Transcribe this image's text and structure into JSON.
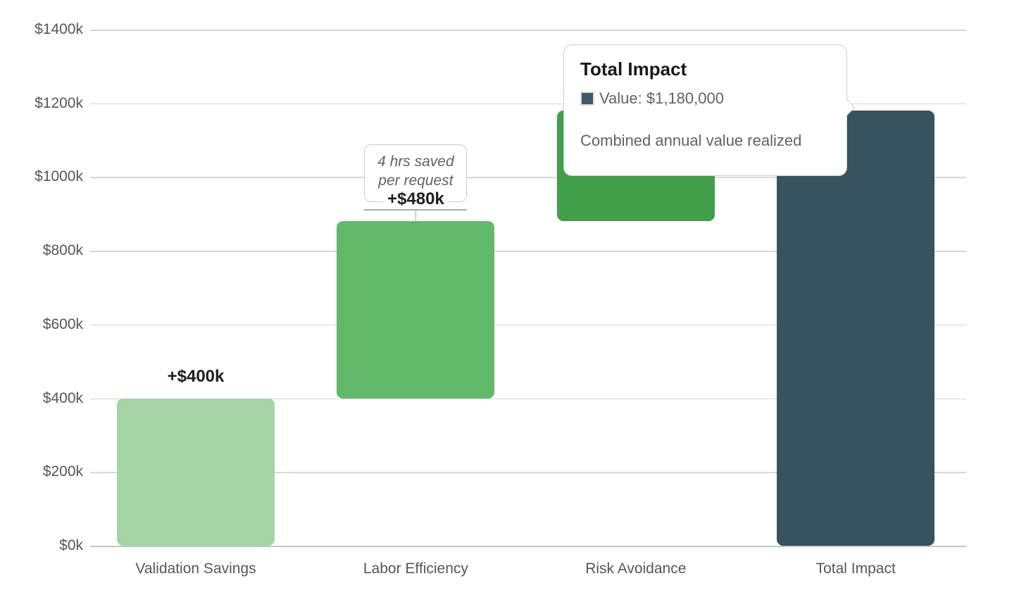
{
  "chart_data": {
    "type": "waterfall",
    "title": "",
    "categories": [
      "Validation Savings",
      "Labor Efficiency",
      "Risk Avoidance",
      "Total Impact"
    ],
    "bars": [
      {
        "category": "Validation Savings",
        "start": 0,
        "end": 400,
        "value": 400,
        "value_label": "+$400k",
        "color": "#a4d4a5",
        "role": "increase"
      },
      {
        "category": "Labor Efficiency",
        "start": 400,
        "end": 880,
        "value": 480,
        "value_label": "+$480k",
        "color": "#61b96a",
        "role": "increase"
      },
      {
        "category": "Risk Avoidance",
        "start": 880,
        "end": 1180,
        "value": 300,
        "value_label": null,
        "color": "#40a049",
        "role": "increase"
      },
      {
        "category": "Total Impact",
        "start": 0,
        "end": 1180,
        "value": 1180,
        "value_label": null,
        "color": "#36535f",
        "role": "total"
      }
    ],
    "annotations": [
      {
        "target": "Labor Efficiency",
        "lines": [
          "4 hrs saved",
          "per request"
        ]
      }
    ],
    "y_axis": {
      "min": 0,
      "max": 1400,
      "step": 200,
      "tick_labels": [
        "$0k",
        "$200k",
        "$400k",
        "$600k",
        "$800k",
        "$1000k",
        "$1200k",
        "$1400k"
      ],
      "unit": "USD thousands"
    },
    "grid": true,
    "legend": "none"
  },
  "tooltip": {
    "target": "Total Impact",
    "title": "Total Impact",
    "value_label": "Value: $1,180,000",
    "swatch_color": "#3d5a66",
    "description": "Combined annual value realized"
  },
  "colors": {
    "background": "#ffffff",
    "gridline": "#d6d8da",
    "axis_line": "#c3c6c9",
    "tick_text": "#54575c",
    "bar_label_text": "#1f1f1f",
    "annotation_text": "#5f6368",
    "annotation_border": "#c9ccce",
    "callout_line": "#a9adb1",
    "tooltip_border": "#ccced1",
    "tooltip_title_text": "#17191c",
    "tooltip_body_text": "#5f6368"
  }
}
